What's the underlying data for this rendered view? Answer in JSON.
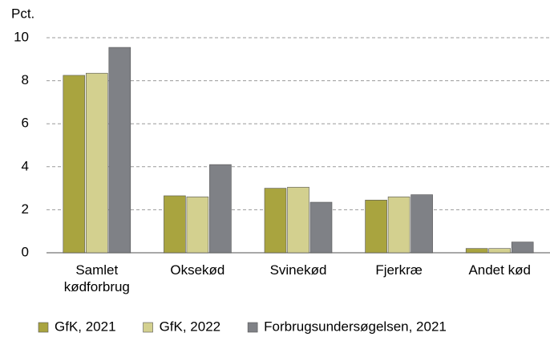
{
  "chart_data": {
    "type": "bar",
    "y_axis_label": "Pct.",
    "categories": [
      "Samlet kødforbrug",
      "Oksekød",
      "Svinekød",
      "Fjerkræ",
      "Andet kød"
    ],
    "series": [
      {
        "name": "GfK, 2021",
        "color": "#a9a43f",
        "values": [
          8.25,
          2.65,
          3.0,
          2.45,
          0.2
        ]
      },
      {
        "name": "GfK, 2022",
        "color": "#d3d08f",
        "values": [
          8.35,
          2.6,
          3.05,
          2.6,
          0.2
        ]
      },
      {
        "name": "Forbrugsundersøgelsen, 2021",
        "color": "#7f8186",
        "values": [
          9.55,
          4.1,
          2.35,
          2.7,
          0.5
        ]
      }
    ],
    "ylim": [
      0,
      10
    ],
    "yticks": [
      0,
      2,
      4,
      6,
      8,
      10
    ],
    "grid": true,
    "legend": "bottom"
  }
}
